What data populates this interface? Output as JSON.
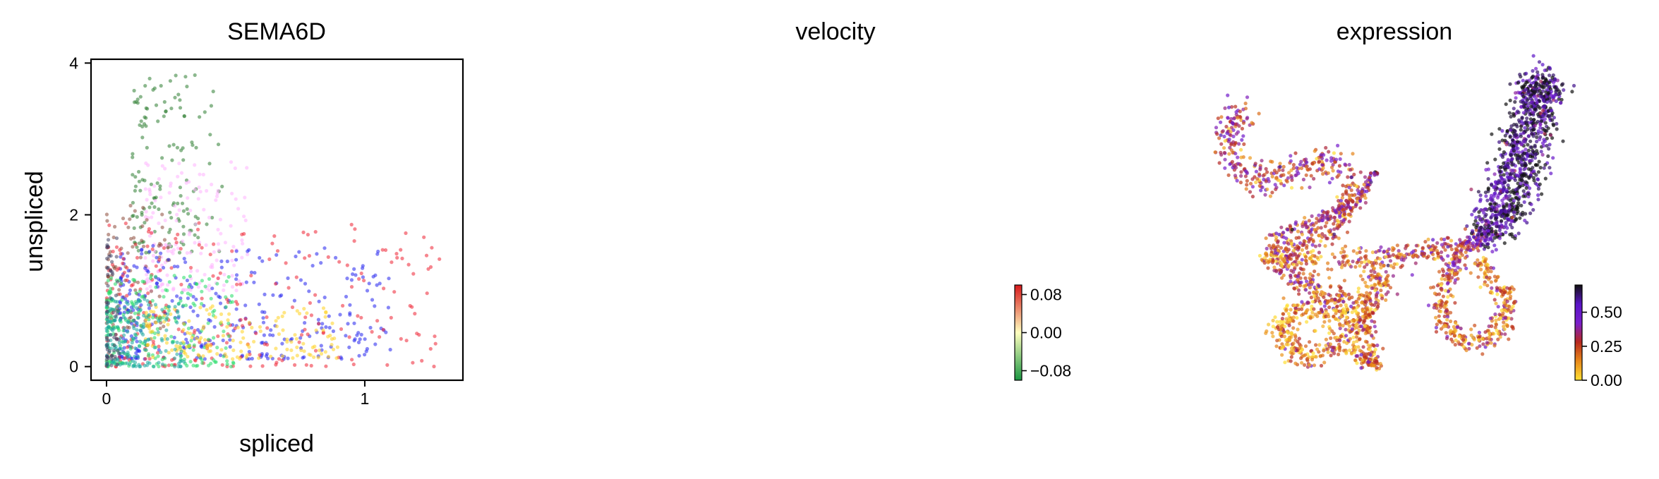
{
  "chart_data": [
    {
      "type": "scatter",
      "title": "SEMA6D",
      "xlabel": "spliced",
      "ylabel": "unspliced",
      "xlim": [
        -0.06,
        1.38
      ],
      "ylim": [
        -0.18,
        4.05
      ],
      "xticks": [
        {
          "value": 0,
          "label": "0"
        },
        {
          "value": 1,
          "label": "1"
        }
      ],
      "yticks": [
        {
          "value": 0,
          "label": "0"
        },
        {
          "value": 2,
          "label": "2"
        },
        {
          "value": 4,
          "label": "4"
        }
      ],
      "grid": false,
      "marker_opacity": 0.55,
      "groups": [
        {
          "color": "#2e7d32",
          "n": 140,
          "x_range": [
            0.1,
            0.45
          ],
          "y_range": [
            1.5,
            3.85
          ]
        },
        {
          "color": "#ffb3ff",
          "n": 160,
          "x_range": [
            0.15,
            0.55
          ],
          "y_range": [
            1.0,
            2.7
          ]
        },
        {
          "color": "#8d4a3a",
          "n": 90,
          "x_range": [
            0.0,
            0.25
          ],
          "y_range": [
            0.5,
            2.2
          ]
        },
        {
          "color": "#2222ee",
          "n": 320,
          "x_range": [
            0.05,
            1.1
          ],
          "y_range": [
            0.1,
            1.6
          ]
        },
        {
          "color": "#ee2233",
          "n": 260,
          "x_range": [
            0.0,
            1.3
          ],
          "y_range": [
            0.0,
            1.9
          ]
        },
        {
          "color": "#22dd66",
          "n": 220,
          "x_range": [
            0.0,
            0.5
          ],
          "y_range": [
            0.0,
            1.2
          ]
        },
        {
          "color": "#ffd21f",
          "n": 160,
          "x_range": [
            0.15,
            0.9
          ],
          "y_range": [
            0.1,
            0.8
          ]
        },
        {
          "color": "#1aa8a0",
          "n": 180,
          "x_range": [
            0.0,
            0.3
          ],
          "y_range": [
            0.0,
            0.9
          ]
        },
        {
          "color": "#444466",
          "n": 60,
          "x_range": [
            0.0,
            0.05
          ],
          "y_range": [
            0.0,
            1.7
          ]
        }
      ]
    },
    {
      "type": "scatter",
      "title": "velocity",
      "points_visible": false,
      "colorbar": {
        "ticks": [
          {
            "value": 0.08,
            "label": "0.08"
          },
          {
            "value": 0.0,
            "label": "0.00"
          },
          {
            "value": -0.08,
            "label": "−0.08"
          }
        ],
        "range": [
          -0.1,
          0.1
        ],
        "colors": [
          "#1a9641",
          "#ffffbf",
          "#d7191c"
        ]
      }
    },
    {
      "type": "scatter",
      "title": "expression",
      "embedding": "umap",
      "colorbar": {
        "ticks": [
          {
            "value": 0.5,
            "label": "0.50"
          },
          {
            "value": 0.25,
            "label": "0.25"
          },
          {
            "value": 0.0,
            "label": "0.00"
          }
        ],
        "range": [
          0.0,
          0.7
        ],
        "colors": [
          "#ffe033",
          "#e8891a",
          "#b8281e",
          "#7a1fcc",
          "#5a14c8",
          "#111111"
        ]
      }
    }
  ]
}
